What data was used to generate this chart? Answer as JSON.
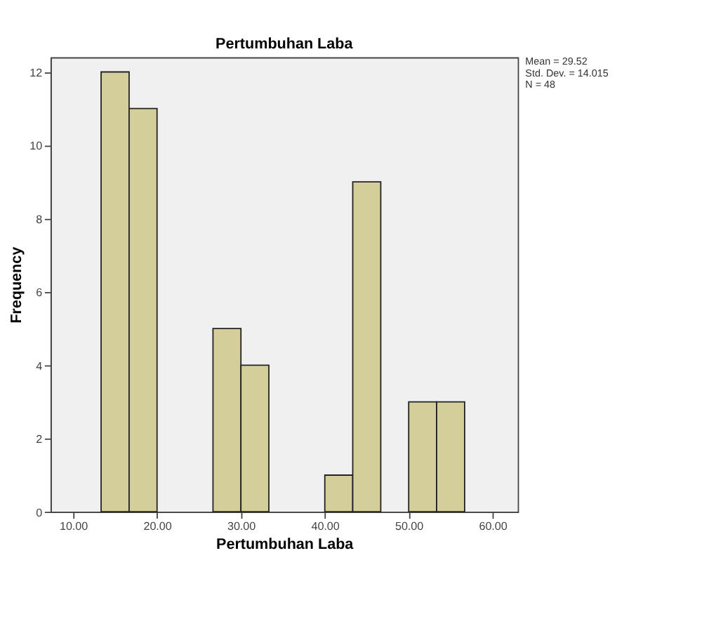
{
  "chart_data": {
    "type": "histogram",
    "title": "Pertumbuhan Laba",
    "xlabel": "Pertumbuhan Laba",
    "ylabel": "Frequency",
    "bins": [
      13.33,
      16.67,
      20,
      23.33,
      26.67,
      30,
      33.33,
      36.67,
      40,
      43.33,
      46.67,
      50,
      53.33,
      56.67
    ],
    "values": [
      12,
      11,
      0,
      0,
      5,
      4,
      0,
      0,
      1,
      9,
      0,
      3,
      3
    ],
    "color": "#d4cf9a",
    "xlim": [
      7.3,
      63
    ],
    "xticks": [
      {
        "value": 10,
        "label": "10.00"
      },
      {
        "value": 20,
        "label": "20.00"
      },
      {
        "value": 30,
        "label": "30.00"
      },
      {
        "value": 40,
        "label": "40.00"
      },
      {
        "value": 50,
        "label": "50.00"
      },
      {
        "value": 60,
        "label": "60.00"
      }
    ],
    "ylim": [
      0,
      12.4
    ],
    "yticks": [
      0,
      2,
      4,
      6,
      8,
      10,
      12
    ],
    "annotations": [
      "Mean = 29.52",
      "Std. Dev. = 14.015",
      "N = 48"
    ],
    "grid": false
  }
}
